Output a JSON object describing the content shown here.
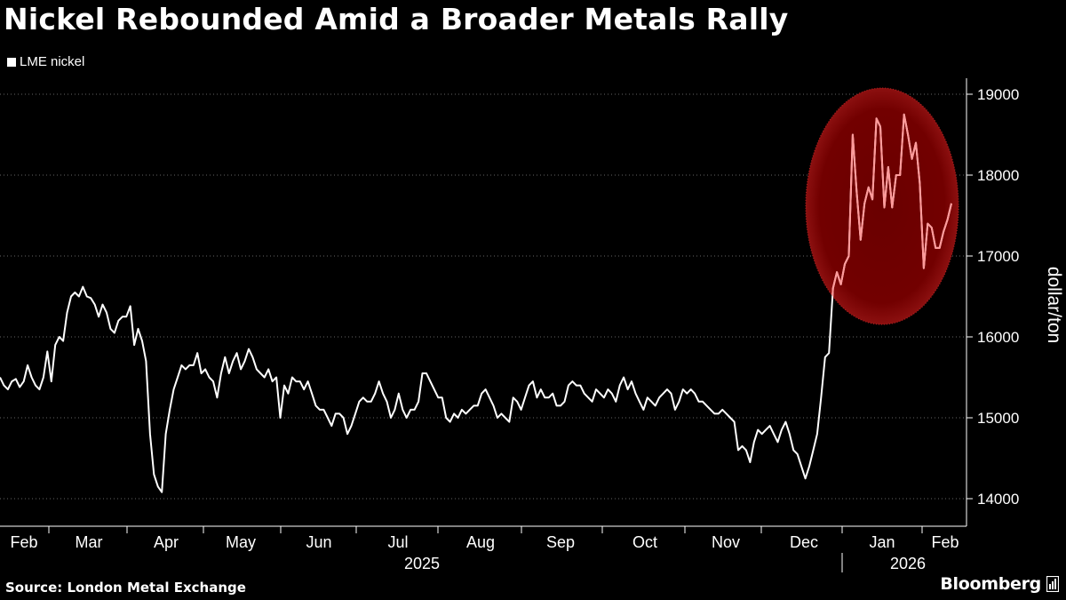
{
  "chart_data": {
    "type": "line",
    "title": "Nickel Rebounded Amid a Broader Metals Rally",
    "legend": [
      "LME nickel"
    ],
    "ylabel": "dollar/ton",
    "ylim": [
      13800,
      19200
    ],
    "yticks": [
      14000,
      15000,
      16000,
      17000,
      18000,
      19000
    ],
    "months": [
      "Feb",
      "Mar",
      "Apr",
      "May",
      "Jun",
      "Jul",
      "Aug",
      "Sep",
      "Oct",
      "Nov",
      "Dec",
      "Jan",
      "Feb"
    ],
    "years": [
      "2025",
      "2026"
    ],
    "x_unit": "trading day index (0 = early Feb 2025)",
    "series": [
      {
        "name": "LME nickel",
        "values": [
          15500,
          15400,
          15350,
          15450,
          15480,
          15380,
          15450,
          15650,
          15500,
          15400,
          15350,
          15500,
          15820,
          15450,
          15900,
          16000,
          15950,
          16300,
          16500,
          16550,
          16500,
          16620,
          16500,
          16480,
          16400,
          16250,
          16400,
          16300,
          16100,
          16050,
          16200,
          16250,
          16250,
          16380,
          15900,
          16100,
          15950,
          15700,
          14800,
          14300,
          14150,
          14080,
          14800,
          15100,
          15350,
          15500,
          15650,
          15600,
          15650,
          15650,
          15800,
          15550,
          15600,
          15500,
          15450,
          15250,
          15550,
          15750,
          15550,
          15700,
          15800,
          15600,
          15700,
          15850,
          15750,
          15600,
          15550,
          15500,
          15600,
          15450,
          15500,
          15000,
          15400,
          15300,
          15500,
          15450,
          15450,
          15350,
          15450,
          15300,
          15150,
          15100,
          15100,
          15000,
          14900,
          15050,
          15050,
          15000,
          14800,
          14900,
          15050,
          15200,
          15250,
          15200,
          15200,
          15300,
          15450,
          15300,
          15200,
          15000,
          15100,
          15300,
          15100,
          15000,
          15100,
          15100,
          15200,
          15550,
          15550,
          15450,
          15350,
          15250,
          15250,
          15000,
          14950,
          15050,
          15000,
          15100,
          15050,
          15100,
          15150,
          15150,
          15300,
          15350,
          15250,
          15150,
          15000,
          15050,
          15000,
          14950,
          15250,
          15200,
          15100,
          15250,
          15400,
          15450,
          15250,
          15350,
          15250,
          15250,
          15300,
          15150,
          15150,
          15200,
          15400,
          15450,
          15400,
          15400,
          15300,
          15250,
          15200,
          15350,
          15300,
          15250,
          15350,
          15300,
          15200,
          15400,
          15500,
          15350,
          15450,
          15300,
          15200,
          15100,
          15250,
          15200,
          15150,
          15250,
          15300,
          15350,
          15300,
          15100,
          15200,
          15350,
          15300,
          15350,
          15300,
          15200,
          15200,
          15150,
          15100,
          15050,
          15050,
          15100,
          15050,
          15000,
          14950,
          14600,
          14650,
          14600,
          14450,
          14700,
          14850,
          14800,
          14850,
          14900,
          14800,
          14700,
          14850,
          14950,
          14800,
          14600,
          14550,
          14400,
          14250,
          14400,
          14600,
          14800,
          15250,
          15750,
          15800,
          16600,
          16800,
          16650,
          16900,
          17000,
          18500,
          17800,
          17200,
          17650,
          17850,
          17700,
          18700,
          18600,
          17600,
          18100,
          17600,
          18000,
          18000,
          18750,
          18500,
          18200,
          18400,
          17900,
          16850,
          17400,
          17350,
          17100,
          17100,
          17300,
          17450,
          17650
        ]
      }
    ],
    "annotations": [
      "highlighted region: recent rally (Dec 2025 – Feb 2026)"
    ]
  },
  "source": {
    "label": "Source: London Metal Exchange"
  },
  "brand": {
    "name": "Bloomberg"
  },
  "colors": {
    "background": "#000000",
    "line": "#ffffff",
    "highlight_fill": "#7a0000",
    "highlight_line": "#ff9a9a",
    "grid": "#666666"
  }
}
